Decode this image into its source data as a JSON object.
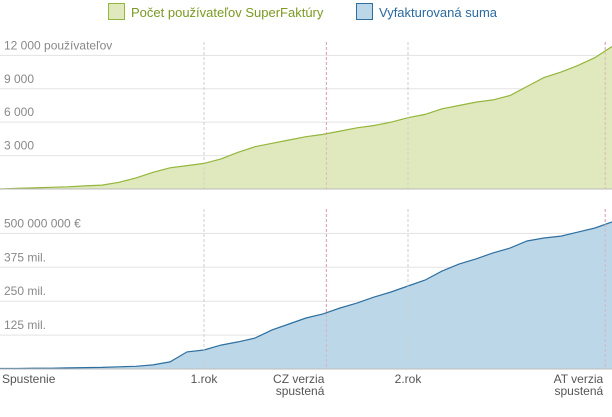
{
  "chart_data": [
    {
      "type": "area",
      "x": [
        0,
        1,
        2,
        3,
        4,
        5,
        6,
        7,
        8,
        9,
        10,
        11,
        12,
        13,
        14,
        15,
        16,
        17,
        18,
        19,
        20,
        21,
        22,
        23,
        24,
        25,
        26,
        27,
        28,
        29,
        30,
        31,
        32,
        33,
        34,
        35,
        36
      ],
      "xlim": [
        0,
        36
      ],
      "series": [
        {
          "name": "Počet používateľov SuperFaktúry",
          "color": "#95b63c",
          "fill": "#dfe9bd",
          "text_color": "#7a9a22",
          "values": [
            0,
            50,
            100,
            150,
            200,
            280,
            350,
            600,
            1000,
            1500,
            1900,
            2100,
            2300,
            2700,
            3300,
            3800,
            4100,
            4400,
            4700,
            4900,
            5200,
            5500,
            5700,
            6000,
            6400,
            6700,
            7200,
            7500,
            7800,
            8000,
            8400,
            9200,
            10000,
            10500,
            11100,
            11800,
            12800
          ]
        }
      ],
      "ylim": [
        0,
        13200
      ],
      "yticks": [
        {
          "value": 3000,
          "label": "3 000"
        },
        {
          "value": 6000,
          "label": "6 000"
        },
        {
          "value": 9000,
          "label": "9 000"
        },
        {
          "value": 12000,
          "label": "12 000 používateľov"
        }
      ],
      "grid": true
    },
    {
      "type": "area",
      "x": [
        0,
        1,
        2,
        3,
        4,
        5,
        6,
        7,
        8,
        9,
        10,
        11,
        12,
        13,
        14,
        15,
        16,
        17,
        18,
        19,
        20,
        21,
        22,
        23,
        24,
        25,
        26,
        27,
        28,
        29,
        30,
        31,
        32,
        33,
        34,
        35,
        36
      ],
      "xlim": [
        0,
        36
      ],
      "series": [
        {
          "name": "Vyfakturovaná suma",
          "color": "#2f6f9f",
          "fill": "#bcd8e8",
          "text_color": "#2a6aa0",
          "values": [
            2000000,
            2000000,
            3000000,
            3000000,
            4000000,
            5000000,
            6000000,
            8000000,
            10000000,
            15000000,
            26000000,
            63000000,
            70000000,
            88000000,
            100000000,
            114000000,
            144000000,
            166000000,
            188000000,
            203000000,
            225000000,
            243000000,
            265000000,
            284000000,
            306000000,
            328000000,
            361000000,
            387000000,
            406000000,
            428000000,
            446000000,
            472000000,
            483000000,
            490000000,
            505000000,
            520000000,
            542000000
          ]
        }
      ],
      "ylim": [
        0,
        590000000
      ],
      "yticks": [
        {
          "value": 125000000,
          "label": "125 mil."
        },
        {
          "value": 250000000,
          "label": "250 mil."
        },
        {
          "value": 375000000,
          "label": "375 mil."
        },
        {
          "value": 500000000,
          "label": "500 000 000 €"
        }
      ],
      "xticks": [
        {
          "value": 0,
          "label": "Spustenie"
        },
        {
          "value": 12,
          "label": "1.rok"
        },
        {
          "value": 19.2,
          "label": "CZ verzia spustená"
        },
        {
          "value": 24,
          "label": "2.rok"
        },
        {
          "value": 35.6,
          "label": "AT verzia spustená"
        }
      ],
      "xtick_line_colors": [
        "#cccccc",
        "#cccccc",
        "#e3a3b8",
        "#cccccc",
        "#e3a3b8"
      ],
      "grid": true
    }
  ]
}
